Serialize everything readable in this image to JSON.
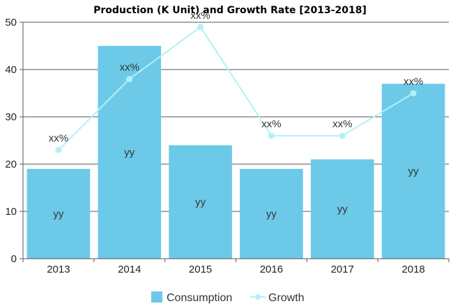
{
  "chart_data": {
    "type": "bar",
    "title": "Production (K Unit) and Growth Rate [2013-2018]",
    "categories": [
      "2013",
      "2014",
      "2015",
      "2016",
      "2017",
      "2018"
    ],
    "ylim": [
      0,
      50
    ],
    "yticks": [
      0,
      10,
      20,
      30,
      40,
      50
    ],
    "grid": true,
    "legend_position": "bottom",
    "series": [
      {
        "name": "Consumption",
        "kind": "bar",
        "color": "#6ccae8",
        "values": [
          19,
          45,
          24,
          19,
          21,
          37
        ],
        "labels": [
          "yy",
          "yy",
          "yy",
          "yy",
          "yy",
          "yy"
        ]
      },
      {
        "name": "Growth",
        "kind": "line",
        "color": "#b3f0f5",
        "values": [
          23,
          38,
          49,
          26,
          26,
          35
        ],
        "labels": [
          "xx%",
          "xx%",
          "xx%",
          "xx%",
          "xx%",
          "xx%"
        ]
      }
    ]
  }
}
